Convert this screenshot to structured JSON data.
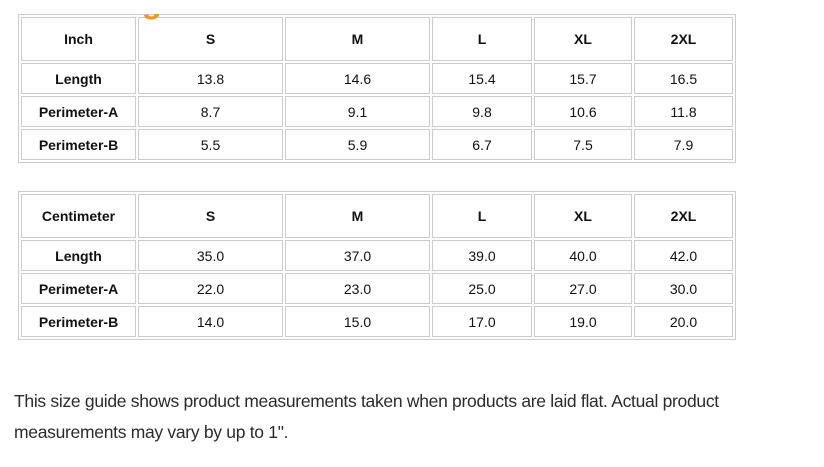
{
  "page": {
    "heading_fragment": "g",
    "accent_color": "#f7941d"
  },
  "size_guide": {
    "tables": [
      {
        "unit_label": "Inch",
        "columns": [
          "S",
          "M",
          "L",
          "XL",
          "2XL"
        ],
        "rows": [
          {
            "label": "Length",
            "values": [
              "13.8",
              "14.6",
              "15.4",
              "15.7",
              "16.5"
            ]
          },
          {
            "label": "Perimeter-A",
            "values": [
              "8.7",
              "9.1",
              "9.8",
              "10.6",
              "11.8"
            ]
          },
          {
            "label": "Perimeter-B",
            "values": [
              "5.5",
              "5.9",
              "6.7",
              "7.5",
              "7.9"
            ]
          }
        ]
      },
      {
        "unit_label": "Centimeter",
        "columns": [
          "S",
          "M",
          "L",
          "XL",
          "2XL"
        ],
        "rows": [
          {
            "label": "Length",
            "values": [
              "35.0",
              "37.0",
              "39.0",
              "40.0",
              "42.0"
            ]
          },
          {
            "label": "Perimeter-A",
            "values": [
              "22.0",
              "23.0",
              "25.0",
              "27.0",
              "30.0"
            ]
          },
          {
            "label": "Perimeter-B",
            "values": [
              "14.0",
              "15.0",
              "17.0",
              "19.0",
              "20.0"
            ]
          }
        ]
      }
    ],
    "note": "This size guide shows product measurements taken when products are laid flat. Actual product measurements may vary by up to 1\"."
  }
}
